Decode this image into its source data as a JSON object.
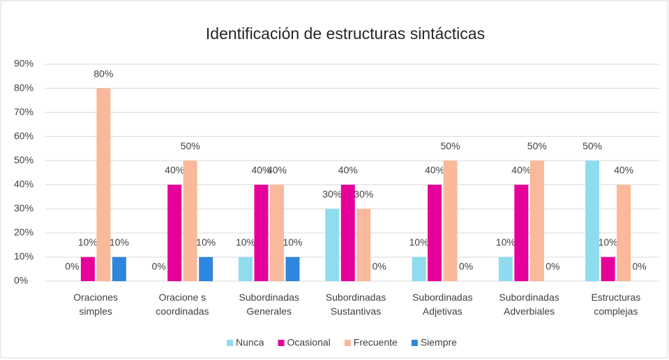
{
  "chart_data": {
    "type": "bar",
    "title": "Identificación de estructuras sintácticas",
    "categories": [
      "Oraciones simples",
      "Oracione s coordinadas",
      "Subordinadas Generales",
      "Subordinadas Sustantivas",
      "Subordinadas Adjetivas",
      "Subordinadas Adverbiales",
      "Estructuras complejas"
    ],
    "series": [
      {
        "name": "Nunca",
        "color": "#8fdcf0",
        "values": [
          0,
          0,
          10,
          30,
          10,
          10,
          50
        ],
        "value_labels": [
          "0%",
          "0%",
          "10%",
          "30%",
          "10%",
          "10%",
          "50%"
        ]
      },
      {
        "name": "Ocasional",
        "color": "#e6009a",
        "values": [
          10,
          40,
          40,
          40,
          40,
          40,
          10
        ],
        "value_labels": [
          "10%",
          "40%",
          "40%",
          "40%",
          "40%",
          "40%",
          "10%"
        ]
      },
      {
        "name": "Frecuente",
        "color": "#f9b99a",
        "values": [
          80,
          50,
          40,
          30,
          50,
          50,
          40
        ],
        "value_labels": [
          "80%",
          "50%",
          "40%",
          "30%",
          "50%",
          "50%",
          "40%"
        ]
      },
      {
        "name": "Siempre",
        "color": "#2e86de",
        "values": [
          10,
          10,
          10,
          0,
          0,
          0,
          0
        ],
        "value_labels": [
          "10%",
          "10%",
          "10%",
          "0%",
          "0%",
          "0%",
          "0%"
        ]
      }
    ],
    "ylim": [
      0,
      90
    ],
    "yticks": [
      {
        "value": 0,
        "label": "0%"
      },
      {
        "value": 10,
        "label": "10%"
      },
      {
        "value": 20,
        "label": "20%"
      },
      {
        "value": 30,
        "label": "30%"
      },
      {
        "value": 40,
        "label": "40%"
      },
      {
        "value": 50,
        "label": "50%"
      },
      {
        "value": 60,
        "label": "60%"
      },
      {
        "value": 70,
        "label": "70%"
      },
      {
        "value": 80,
        "label": "80%"
      },
      {
        "value": 90,
        "label": "90%"
      }
    ],
    "grid": true,
    "legend": "bottom"
  }
}
